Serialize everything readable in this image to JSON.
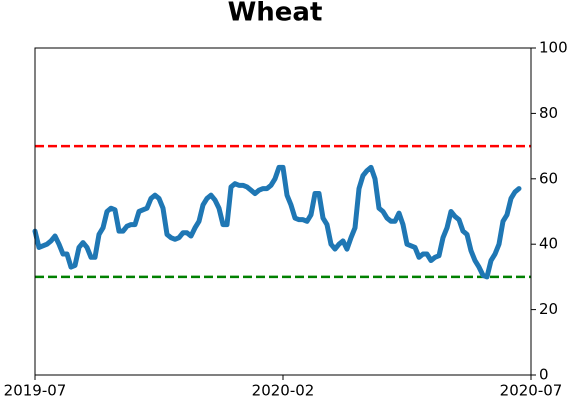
{
  "chart_data": {
    "type": "line",
    "title": "Wheat",
    "series": [
      {
        "color": "#1f77b4",
        "values": [
          44,
          39,
          39.5,
          40,
          41,
          42.5,
          40,
          37,
          37,
          33,
          33.5,
          39,
          40.5,
          39,
          36,
          36,
          43,
          45,
          50,
          51,
          50.5,
          44,
          44,
          45.5,
          46,
          46,
          50,
          50.5,
          51,
          54,
          55,
          54,
          51,
          43,
          42,
          41.5,
          42,
          43.5,
          43.5,
          42.5,
          45,
          47,
          52,
          54,
          55,
          53.5,
          51,
          46,
          46,
          57.5,
          58.5,
          58,
          58,
          57.5,
          56.5,
          55.5,
          56.5,
          57,
          57,
          58,
          60,
          63.5,
          63.5,
          55,
          52,
          48,
          47.5,
          47.5,
          47,
          49,
          55.5,
          55.5,
          48,
          46,
          40,
          38.5,
          40,
          41,
          38.5,
          42,
          45,
          57,
          61,
          62.5,
          63.5,
          60,
          51,
          50,
          48,
          47,
          47,
          49.5,
          46,
          40,
          39.5,
          39,
          36,
          37,
          37,
          35,
          36,
          36.5,
          42,
          45,
          50,
          48.5,
          47.5,
          44,
          43,
          38,
          35,
          33,
          30.5,
          30,
          35,
          37,
          40,
          47,
          49,
          54,
          56,
          57
        ]
      }
    ],
    "xlim": [
      0,
      124
    ],
    "xticks": [
      {
        "value": 0,
        "label": "2019-07"
      },
      {
        "value": 62,
        "label": "2020-02"
      },
      {
        "value": 124,
        "label": "2020-07"
      }
    ],
    "ylim": [
      0,
      100
    ],
    "yticks": [
      0,
      20,
      40,
      60,
      80,
      100
    ],
    "y_axis_side": "right",
    "hlines": [
      {
        "value": 70,
        "color": "#ff0000"
      },
      {
        "value": 30,
        "color": "#008000"
      }
    ]
  }
}
